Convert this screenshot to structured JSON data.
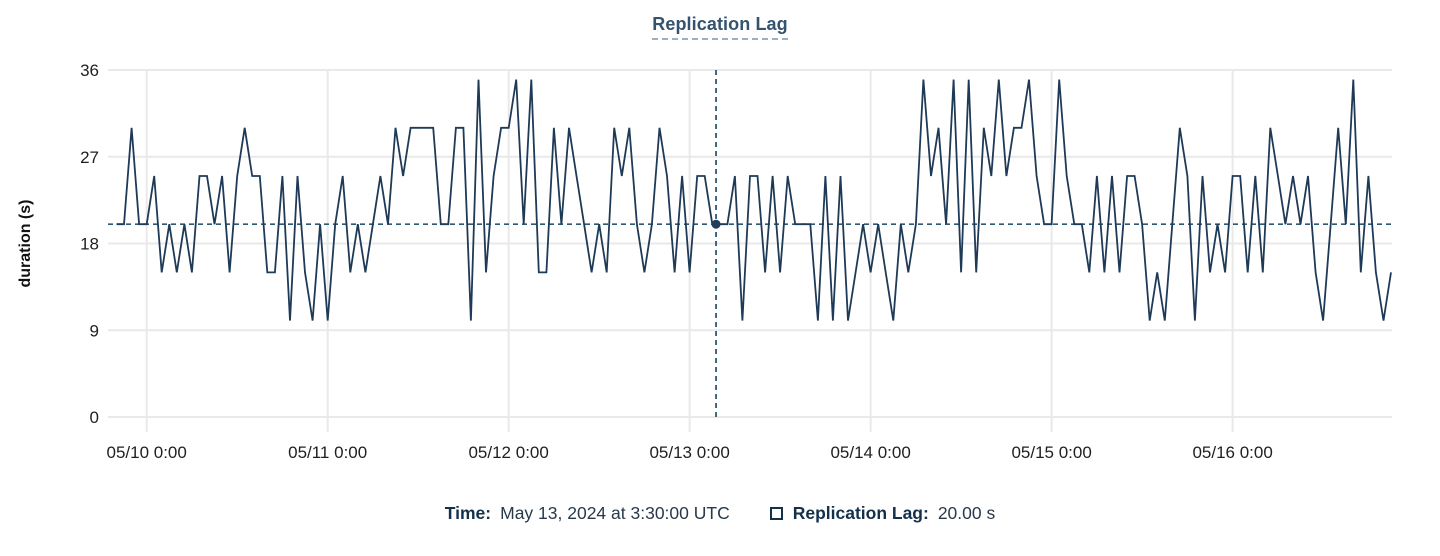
{
  "title": "Replication Lag",
  "colors": {
    "line": "#1e3a57",
    "crosshair": "#2f5873",
    "crosshair_dot": "#223e58",
    "grid": "#e9e9e9",
    "tick": "#dcdcdc",
    "axis_text": "#1f1f1f",
    "title_text": "#33536e",
    "title_underline": "#9db0c0",
    "legend_label": "#14304a",
    "legend_value": "#27394b"
  },
  "tooltip": {
    "time_label": "Time:",
    "time_value": "May 13, 2024 at 3:30:00 UTC",
    "series_label": "Replication Lag:",
    "series_value": "20.00 s"
  },
  "chart_data": {
    "type": "line",
    "title": "Replication Lag",
    "xlabel": "",
    "ylabel": "duration (s)",
    "ylim": [
      0,
      36
    ],
    "y_ticks": [
      0,
      9,
      18,
      27,
      36
    ],
    "grid": true,
    "legend_position": "bottom",
    "x_start": "2024-05-09 20:00 UTC",
    "x_interval_minutes": 60,
    "x_ticks": [
      {
        "label": "05/10 0:00",
        "hour": 4
      },
      {
        "label": "05/11 0:00",
        "hour": 28
      },
      {
        "label": "05/12 0:00",
        "hour": 52
      },
      {
        "label": "05/13 0:00",
        "hour": 76
      },
      {
        "label": "05/14 0:00",
        "hour": 100
      },
      {
        "label": "05/15 0:00",
        "hour": 124
      },
      {
        "label": "05/16 0:00",
        "hour": 148
      }
    ],
    "baseline": {
      "value": 20
    },
    "crosshair": {
      "hour": 79.5,
      "value": 20,
      "time_text": "May 13, 2024 at 3:30:00 UTC",
      "value_text": "20.00 s"
    },
    "series": [
      {
        "name": "Replication Lag",
        "unit": "s",
        "values": [
          20,
          20,
          30,
          20,
          20,
          25,
          15,
          20,
          15,
          20,
          15,
          25,
          25,
          20,
          25,
          15,
          25,
          30,
          25,
          25,
          15,
          15,
          25,
          10,
          25,
          15,
          10,
          20,
          10,
          20,
          25,
          15,
          20,
          15,
          20,
          25,
          20,
          30,
          25,
          30,
          30,
          30,
          30,
          20,
          20,
          30,
          30,
          10,
          35,
          15,
          25,
          30,
          30,
          35,
          20,
          35,
          15,
          15,
          30,
          20,
          30,
          25,
          20,
          15,
          20,
          15,
          30,
          25,
          30,
          20,
          15,
          20,
          30,
          25,
          15,
          25,
          15,
          25,
          25,
          20,
          20,
          20,
          25,
          10,
          25,
          25,
          15,
          25,
          15,
          25,
          20,
          20,
          20,
          10,
          25,
          10,
          25,
          10,
          15,
          20,
          15,
          20,
          15,
          10,
          20,
          15,
          20,
          35,
          25,
          30,
          20,
          35,
          15,
          35,
          15,
          30,
          25,
          35,
          25,
          30,
          30,
          35,
          25,
          20,
          20,
          35,
          25,
          20,
          20,
          15,
          25,
          15,
          25,
          15,
          25,
          25,
          20,
          10,
          15,
          10,
          20,
          30,
          25,
          10,
          25,
          15,
          20,
          15,
          25,
          25,
          15,
          25,
          15,
          30,
          25,
          20,
          25,
          20,
          25,
          15,
          10,
          20,
          30,
          20,
          35,
          15,
          25,
          15,
          10,
          15
        ]
      }
    ]
  }
}
